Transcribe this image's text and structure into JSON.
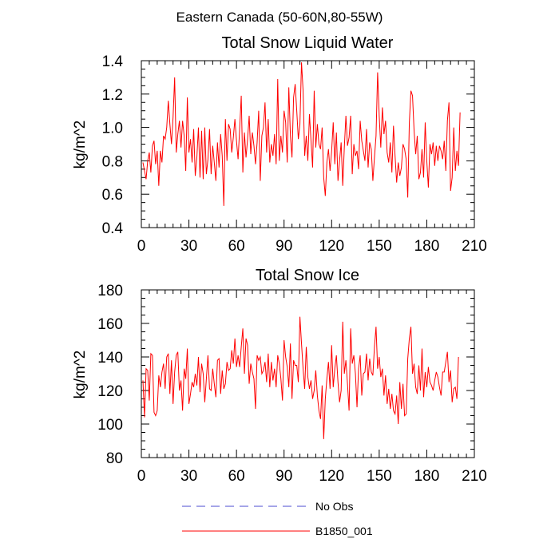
{
  "figure_title": "Eastern Canada (50-60N,80-55W)",
  "colors": {
    "series": "#ff0000",
    "no_obs": "#4b4bd0",
    "axis": "#000000"
  },
  "legend": [
    {
      "label": "No Obs",
      "style": "dashed",
      "color": "#4b4bd0"
    },
    {
      "label": "B1850_001",
      "style": "solid",
      "color": "#ff0000"
    }
  ],
  "chart_data": [
    {
      "type": "line",
      "title": "Total Snow Liquid Water",
      "xlabel": "",
      "ylabel": "kg/m^2",
      "xlim": [
        0,
        210
      ],
      "ylim": [
        0.4,
        1.4
      ],
      "x_ticks": [
        0,
        30,
        60,
        90,
        120,
        150,
        180,
        210
      ],
      "y_ticks": [
        0.4,
        0.6,
        0.8,
        1.0,
        1.2,
        1.4
      ],
      "y_tick_labels": [
        "0.4",
        "0.6",
        "0.8",
        "1.0",
        "1.2",
        "1.4"
      ],
      "x_minor_step": 5,
      "y_minor_step": 0.05,
      "x_start": 1,
      "series": [
        {
          "name": "B1850_001",
          "values": [
            0.79,
            0.74,
            0.69,
            0.8,
            0.85,
            0.73,
            0.89,
            0.92,
            0.78,
            0.86,
            0.65,
            0.86,
            0.79,
            0.95,
            0.93,
            1.0,
            1.16,
            1.02,
            0.9,
            1.06,
            1.3,
            0.85,
            0.96,
            1.04,
            0.88,
            1.04,
            0.95,
            0.74,
            1.18,
            0.85,
            0.93,
            0.79,
            0.99,
            0.71,
            0.82,
            1.0,
            0.7,
            0.98,
            0.69,
            1.0,
            0.72,
            0.81,
            0.99,
            0.72,
            0.89,
            0.79,
            0.68,
            0.91,
            0.76,
            0.96,
            0.83,
            0.53,
            1.05,
            0.8,
            1.02,
            0.99,
            0.85,
            0.94,
            1.05,
            0.92,
            0.81,
            0.99,
            1.19,
            0.73,
            0.97,
            0.82,
            0.93,
            1.07,
            0.84,
            0.97,
            0.89,
            0.78,
            0.91,
            1.1,
            0.68,
            0.95,
            1.0,
            1.15,
            0.85,
            1.05,
            0.79,
            0.9,
            0.83,
            0.96,
            0.78,
            1.29,
            0.8,
            0.95,
            0.85,
            1.1,
            1.03,
            0.79,
            1.24,
            0.95,
            0.82,
            1.18,
            1.26,
            1.1,
            0.93,
            1.02,
            1.39,
            1.22,
            0.83,
            0.95,
            0.8,
            1.08,
            0.92,
            0.76,
            1.22,
            0.88,
            1.02,
            0.9,
            0.87,
            1.0,
            0.7,
            0.59,
            0.79,
            0.87,
            0.74,
            0.86,
            1.03,
            0.78,
            0.97,
            0.68,
            0.8,
            0.91,
            0.65,
            0.88,
            1.07,
            0.89,
            0.94,
            1.07,
            0.72,
            0.9,
            0.83,
            0.86,
            0.75,
            1.04,
            0.92,
            0.86,
            0.8,
            0.99,
            0.76,
            0.91,
            0.87,
            0.68,
            0.82,
            0.95,
            1.33,
            1.07,
            0.88,
            1.12,
            0.96,
            1.04,
            0.85,
            0.79,
            0.91,
            0.73,
            1.01,
            0.83,
            0.67,
            0.79,
            0.71,
            0.76,
            0.9,
            0.87,
            0.81,
            0.58,
            1.03,
            1.22,
            1.19,
            0.98,
            0.84,
            0.95,
            0.69,
            0.73,
            0.87,
            0.7,
            1.03,
            0.8,
            0.64,
            0.9,
            0.84,
            0.91,
            0.77,
            0.89,
            0.8,
            0.89,
            0.86,
            0.81,
            0.92,
            0.74,
            1.04,
            1.15,
            0.62,
            0.7,
            1.0,
            0.74,
            0.86,
            0.77,
            1.09
          ]
        }
      ]
    },
    {
      "type": "line",
      "title": "Total Snow Ice",
      "xlabel": "",
      "ylabel": "kg/m^2",
      "xlim": [
        0,
        210
      ],
      "ylim": [
        80,
        180
      ],
      "x_ticks": [
        0,
        30,
        60,
        90,
        120,
        150,
        180,
        210
      ],
      "y_ticks": [
        80,
        100,
        120,
        140,
        160,
        180
      ],
      "y_tick_labels": [
        "80",
        "100",
        "120",
        "140",
        "160",
        "180"
      ],
      "x_minor_step": 5,
      "y_minor_step": 5,
      "x_start": 1,
      "series": [
        {
          "name": "B1850_001",
          "values": [
            126,
            104,
            133,
            132,
            114,
            142,
            141,
            107,
            105,
            108,
            129,
            122,
            131,
            136,
            121,
            140,
            142,
            118,
            138,
            112,
            131,
            141,
            143,
            120,
            126,
            108,
            133,
            127,
            145,
            112,
            118,
            125,
            122,
            130,
            123,
            140,
            119,
            136,
            130,
            113,
            127,
            141,
            121,
            120,
            133,
            124,
            116,
            138,
            139,
            118,
            132,
            121,
            124,
            137,
            132,
            133,
            144,
            136,
            151,
            134,
            141,
            134,
            146,
            157,
            130,
            151,
            147,
            124,
            136,
            131,
            127,
            109,
            141,
            138,
            140,
            130,
            132,
            137,
            125,
            142,
            122,
            137,
            126,
            133,
            122,
            141,
            136,
            127,
            114,
            150,
            140,
            134,
            122,
            148,
            115,
            138,
            135,
            135,
            125,
            164,
            148,
            133,
            121,
            146,
            128,
            121,
            126,
            115,
            120,
            132,
            117,
            108,
            103,
            123,
            91,
            115,
            127,
            137,
            121,
            147,
            122,
            133,
            141,
            125,
            113,
            120,
            161,
            130,
            138,
            124,
            108,
            157,
            136,
            141,
            130,
            110,
            133,
            141,
            117,
            130,
            131,
            142,
            126,
            139,
            131,
            129,
            146,
            158,
            133,
            140,
            128,
            133,
            117,
            129,
            112,
            121,
            109,
            118,
            108,
            106,
            117,
            100,
            125,
            109,
            124,
            105,
            106,
            139,
            151,
            158,
            130,
            136,
            122,
            118,
            135,
            120,
            145,
            116,
            131,
            122,
            134,
            125,
            123,
            120,
            126,
            131,
            128,
            122,
            117,
            131,
            131,
            137,
            143,
            125,
            132,
            113,
            121,
            122,
            115,
            140
          ]
        }
      ]
    }
  ]
}
